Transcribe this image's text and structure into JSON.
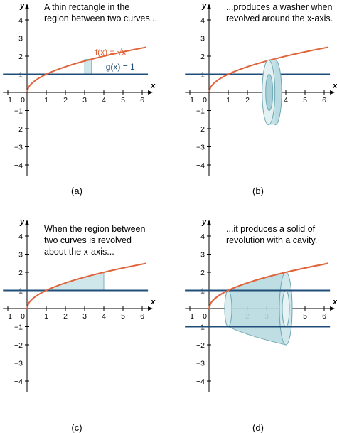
{
  "panels": [
    {
      "id": "a",
      "caption_lines": [
        "A thin rectangle in the",
        "region between two curves..."
      ],
      "panel_label": "(a)",
      "f_label": "f(x) = √x",
      "g_label": "g(x) = 1"
    },
    {
      "id": "b",
      "caption_lines": [
        "...produces a washer when",
        "revolved around the x-axis."
      ],
      "panel_label": "(b)"
    },
    {
      "id": "c",
      "caption_lines": [
        "When the region between",
        "two curves is revolved",
        "about the x-axis..."
      ],
      "panel_label": "(c)"
    },
    {
      "id": "d",
      "caption_lines": [
        "...it produces a solid of",
        "revolution with a cavity."
      ],
      "panel_label": "(d)"
    }
  ],
  "axes": {
    "x_label": "x",
    "y_label": "y",
    "x_ticks": [
      -1,
      1,
      2,
      3,
      4,
      5,
      6
    ],
    "y_ticks": [
      4,
      3,
      2,
      1,
      -1,
      -2,
      -3,
      -4
    ],
    "origin_label": "0",
    "xlim": [
      -1,
      6
    ],
    "ylim": [
      -4,
      4
    ]
  },
  "colors": {
    "f_curve": "#e0643a",
    "g_curve": "#1f4e79",
    "fill": "#cfe6ea"
  }
}
